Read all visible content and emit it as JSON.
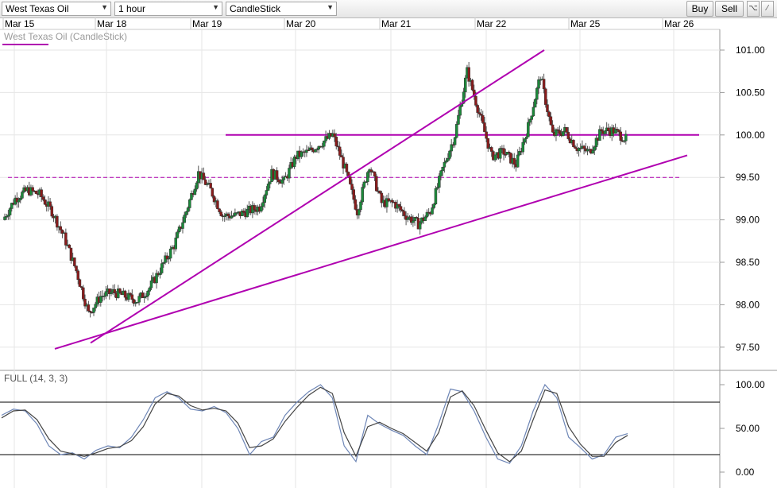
{
  "toolbar": {
    "instrument": "West Texas Oil",
    "timeframe": "1 hour",
    "chart_type": "CandleStick",
    "buy_label": "Buy",
    "sell_label": "Sell",
    "icons": [
      "chart-settings-icon",
      "draw-line-icon"
    ]
  },
  "colors": {
    "up_candle": "#1b8a3a",
    "down_candle": "#8a1b1b",
    "trendline": "#b000b0",
    "stoch_k": "#6e86b6",
    "stoch_d": "#444444",
    "grid": "#e6e6e6"
  },
  "chart_data": [
    {
      "type": "candlestick",
      "title": "West Texas Oil (CandleStick)",
      "x_tick_labels": [
        "Mar 15",
        "Mar 18",
        "Mar 19",
        "Mar 20",
        "Mar 21",
        "Mar 22",
        "Mar 25",
        "Mar 26"
      ],
      "y_tick_labels": [
        "101.00",
        "100.50",
        "100.00",
        "99.50",
        "99.00",
        "98.50",
        "98.00",
        "97.50"
      ],
      "ylim": [
        97.2,
        101.3
      ],
      "grid": true,
      "horizontal_levels": [
        {
          "value": 100.0,
          "style": "solid"
        },
        {
          "value": 99.5,
          "style": "dashed"
        }
      ],
      "trendlines": [
        {
          "from": {
            "x": "Mar 18",
            "y": 97.55
          },
          "to": {
            "x": "Mar 22",
            "y": 101.0
          }
        },
        {
          "from": {
            "x": "Mar 15",
            "y": 97.48
          },
          "to": {
            "x": "Mar 26",
            "y": 99.76
          }
        }
      ],
      "close_path": [
        [
          "Mar 15",
          99.0
        ],
        [
          "Mar 15",
          99.25
        ],
        [
          "Mar 15",
          99.35
        ],
        [
          "Mar 15",
          99.3
        ],
        [
          "Mar 15",
          99.1
        ],
        [
          "Mar 15",
          98.8
        ],
        [
          "Mar 18",
          98.4
        ],
        [
          "Mar 18",
          97.9
        ],
        [
          "Mar 18",
          98.1
        ],
        [
          "Mar 18",
          98.15
        ],
        [
          "Mar 18",
          98.1
        ],
        [
          "Mar 18",
          98.05
        ],
        [
          "Mar 18",
          98.2
        ],
        [
          "Mar 18",
          98.45
        ],
        [
          "Mar 19",
          98.7
        ],
        [
          "Mar 19",
          99.1
        ],
        [
          "Mar 19",
          99.55
        ],
        [
          "Mar 19",
          99.35
        ],
        [
          "Mar 19",
          99.05
        ],
        [
          "Mar 19",
          99.05
        ],
        [
          "Mar 19",
          99.1
        ],
        [
          "Mar 19",
          99.15
        ],
        [
          "Mar 20",
          99.55
        ],
        [
          "Mar 20",
          99.45
        ],
        [
          "Mar 20",
          99.75
        ],
        [
          "Mar 20",
          99.8
        ],
        [
          "Mar 20",
          99.9
        ],
        [
          "Mar 20",
          100.0
        ],
        [
          "Mar 20",
          99.6
        ],
        [
          "Mar 20",
          99.1
        ],
        [
          "Mar 21",
          99.65
        ],
        [
          "Mar 21",
          99.2
        ],
        [
          "Mar 21",
          99.2
        ],
        [
          "Mar 21",
          99.05
        ],
        [
          "Mar 21",
          98.95
        ],
        [
          "Mar 21",
          99.1
        ],
        [
          "Mar 21",
          99.6
        ],
        [
          "Mar 21",
          100.0
        ],
        [
          "Mar 22",
          100.75
        ],
        [
          "Mar 22",
          100.25
        ],
        [
          "Mar 22",
          99.75
        ],
        [
          "Mar 22",
          99.8
        ],
        [
          "Mar 22",
          99.65
        ],
        [
          "Mar 22",
          100.1
        ],
        [
          "Mar 22",
          100.7
        ],
        [
          "Mar 22",
          100.0
        ],
        [
          "Mar 25",
          100.05
        ],
        [
          "Mar 25",
          99.85
        ],
        [
          "Mar 25",
          99.8
        ],
        [
          "Mar 25",
          100.05
        ],
        [
          "Mar 25",
          100.05
        ],
        [
          "Mar 25",
          99.95
        ]
      ]
    },
    {
      "type": "line",
      "title": "FULL (14, 3, 3)",
      "y_tick_labels": [
        "100.00",
        "50.00",
        "0.00"
      ],
      "ylim": [
        0,
        100
      ],
      "reference_levels": [
        80,
        20
      ],
      "series": [
        {
          "values": [
            65,
            72,
            70,
            55,
            30,
            20,
            22,
            15,
            25,
            30,
            28,
            40,
            60,
            85,
            92,
            85,
            72,
            70,
            75,
            68,
            50,
            20,
            35,
            40,
            65,
            80,
            92,
            100,
            85,
            30,
            12,
            65,
            55,
            48,
            42,
            30,
            20,
            55,
            95,
            92,
            70,
            40,
            15,
            10,
            30,
            70,
            100,
            85,
            40,
            28,
            15,
            20,
            40,
            44
          ]
        },
        {
          "values": [
            62,
            70,
            71,
            60,
            38,
            24,
            21,
            18,
            22,
            27,
            29,
            36,
            52,
            78,
            90,
            87,
            76,
            71,
            73,
            70,
            56,
            28,
            30,
            38,
            58,
            74,
            88,
            97,
            90,
            45,
            18,
            52,
            57,
            50,
            44,
            34,
            24,
            45,
            86,
            93,
            76,
            48,
            22,
            12,
            24,
            60,
            94,
            90,
            52,
            32,
            18,
            18,
            34,
            42
          ]
        }
      ]
    }
  ]
}
